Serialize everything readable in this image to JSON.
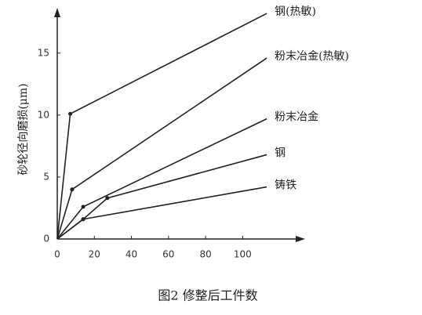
{
  "chart_data": {
    "type": "line",
    "caption": "图2  修整后工件数",
    "y_label": "砂轮径向磨损(μm)",
    "xlim": [
      0,
      132
    ],
    "ylim": [
      0,
      18.4
    ],
    "xticks": [
      0,
      20,
      40,
      60,
      80,
      100
    ],
    "yticks": [
      0,
      5,
      10,
      15
    ],
    "series": [
      {
        "name": "钢(热敏)",
        "color": "#222222",
        "x": [
          0,
          7,
          113
        ],
        "values": [
          0,
          10.1,
          18.2
        ]
      },
      {
        "name": "粉末冶金(热敏)",
        "color": "#222222",
        "x": [
          0,
          8,
          113
        ],
        "values": [
          0,
          4,
          14.6
        ]
      },
      {
        "name": "粉末冶金",
        "color": "#222222",
        "x": [
          0,
          14,
          113
        ],
        "values": [
          0,
          2.6,
          9.7
        ]
      },
      {
        "name": "钢",
        "color": "#222222",
        "x": [
          0,
          14,
          27,
          113
        ],
        "values": [
          0,
          1.6,
          3.3,
          6.8
        ]
      },
      {
        "name": "铸铁",
        "color": "#222222",
        "x": [
          0,
          14,
          113
        ],
        "values": [
          0,
          1.6,
          4.2
        ]
      }
    ]
  }
}
